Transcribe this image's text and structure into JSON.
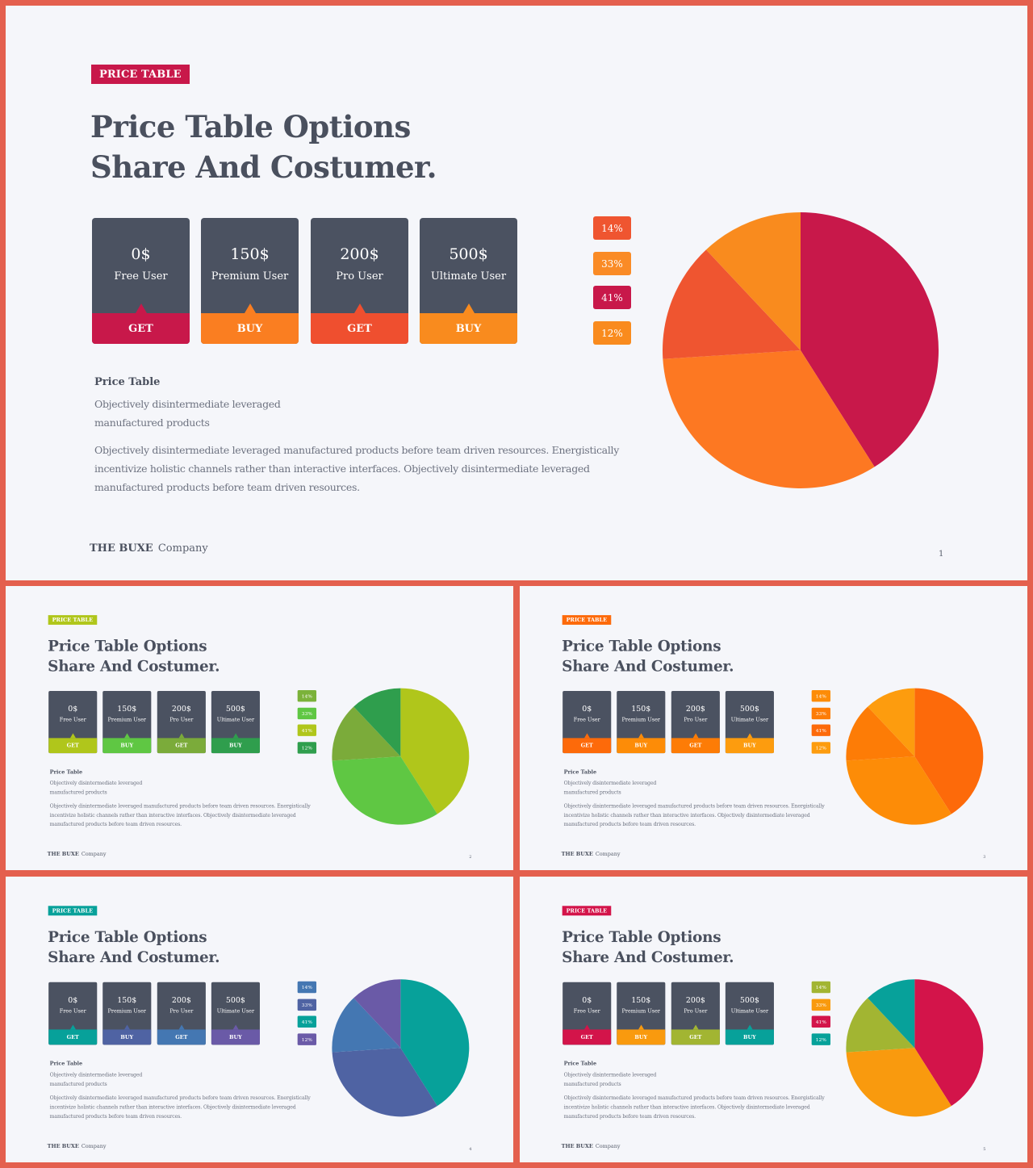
{
  "slides": [
    {
      "tag": "PRICE TABLE",
      "title_line1": "Price Table Options",
      "title_line2": "Share And Costumer.",
      "page_number": "1",
      "colors": {
        "tag": "#c8184a",
        "buttons": [
          "#c8184a",
          "#fa7e21",
          "#ef4f2f",
          "#f98b1e"
        ],
        "badges": [
          "#ef5530",
          "#fa8b26",
          "#c8184a",
          "#f98b1e"
        ],
        "pie": [
          "#c8184a",
          "#fd7822",
          "#ef5530",
          "#f98b1e"
        ]
      }
    },
    {
      "tag": "PRICE TABLE",
      "title_line1": "Price Table Options",
      "title_line2": "Share And Costumer.",
      "page_number": "2",
      "colors": {
        "tag": "#b0c61b",
        "buttons": [
          "#b0c61b",
          "#5fc743",
          "#7bab3a",
          "#2f9e4d"
        ],
        "badges": [
          "#7bb23a",
          "#5fc743",
          "#b0c61b",
          "#2f9e4d"
        ],
        "pie": [
          "#b0c61b",
          "#5fc743",
          "#7bab3a",
          "#2f9e4d"
        ]
      }
    },
    {
      "tag": "PRICE TABLE",
      "title_line1": "Price Table Options",
      "title_line2": "Share And Costumer.",
      "page_number": "3",
      "colors": {
        "tag": "#fd6a0a",
        "buttons": [
          "#fd6a0a",
          "#fd8c07",
          "#fd7c06",
          "#fd9c0e"
        ],
        "badges": [
          "#fd8c07",
          "#fd7c06",
          "#fd6a0a",
          "#fd9c0e"
        ],
        "pie": [
          "#fd6a0a",
          "#fd8c07",
          "#fd7c06",
          "#fd9c0e"
        ]
      }
    },
    {
      "tag": "PRICE TABLE",
      "title_line1": "Price Table Options",
      "title_line2": "Share And Costumer.",
      "page_number": "4",
      "colors": {
        "tag": "#07a19a",
        "buttons": [
          "#07a19a",
          "#4f63a3",
          "#4477b2",
          "#6a5aa7"
        ],
        "badges": [
          "#4477b2",
          "#4f63a3",
          "#07a19a",
          "#6a5aa7"
        ],
        "pie": [
          "#07a19a",
          "#4f63a3",
          "#4477b2",
          "#6a5aa7"
        ]
      }
    },
    {
      "tag": "PRICE TABLE",
      "title_line1": "Price Table Options",
      "title_line2": "Share And Costumer.",
      "page_number": "5",
      "colors": {
        "tag": "#d3144a",
        "buttons": [
          "#d3144a",
          "#f99a0e",
          "#a2b532",
          "#07a19a"
        ],
        "badges": [
          "#a2b532",
          "#f99a0e",
          "#d3144a",
          "#07a19a"
        ],
        "pie": [
          "#d3144a",
          "#f99a0e",
          "#a2b532",
          "#07a19a"
        ]
      }
    }
  ],
  "plans": [
    {
      "price": "0$",
      "name": "Free User",
      "button": "GET"
    },
    {
      "price": "150$",
      "name": "Premium User",
      "button": "BUY"
    },
    {
      "price": "200$",
      "name": "Pro User",
      "button": "GET"
    },
    {
      "price": "500$",
      "name": "Ultimate User",
      "button": "BUY"
    }
  ],
  "badges": [
    "14%",
    "33%",
    "41%",
    "12%"
  ],
  "description": {
    "title": "Price Table",
    "subtitle": "Objectively disintermediate leveraged manufactured products",
    "body": "Objectively disintermediate leveraged manufactured products before team driven resources. Energistically incentivize holistic channels rather than interactive interfaces. Objectively disintermediate leveraged manufactured products before team driven resources."
  },
  "footer": {
    "brand": "THE BUXE",
    "company": "Company"
  },
  "chart_data": {
    "type": "pie",
    "slices": [
      {
        "value": 41
      },
      {
        "value": 33
      },
      {
        "value": 14
      },
      {
        "value": 12
      }
    ]
  }
}
